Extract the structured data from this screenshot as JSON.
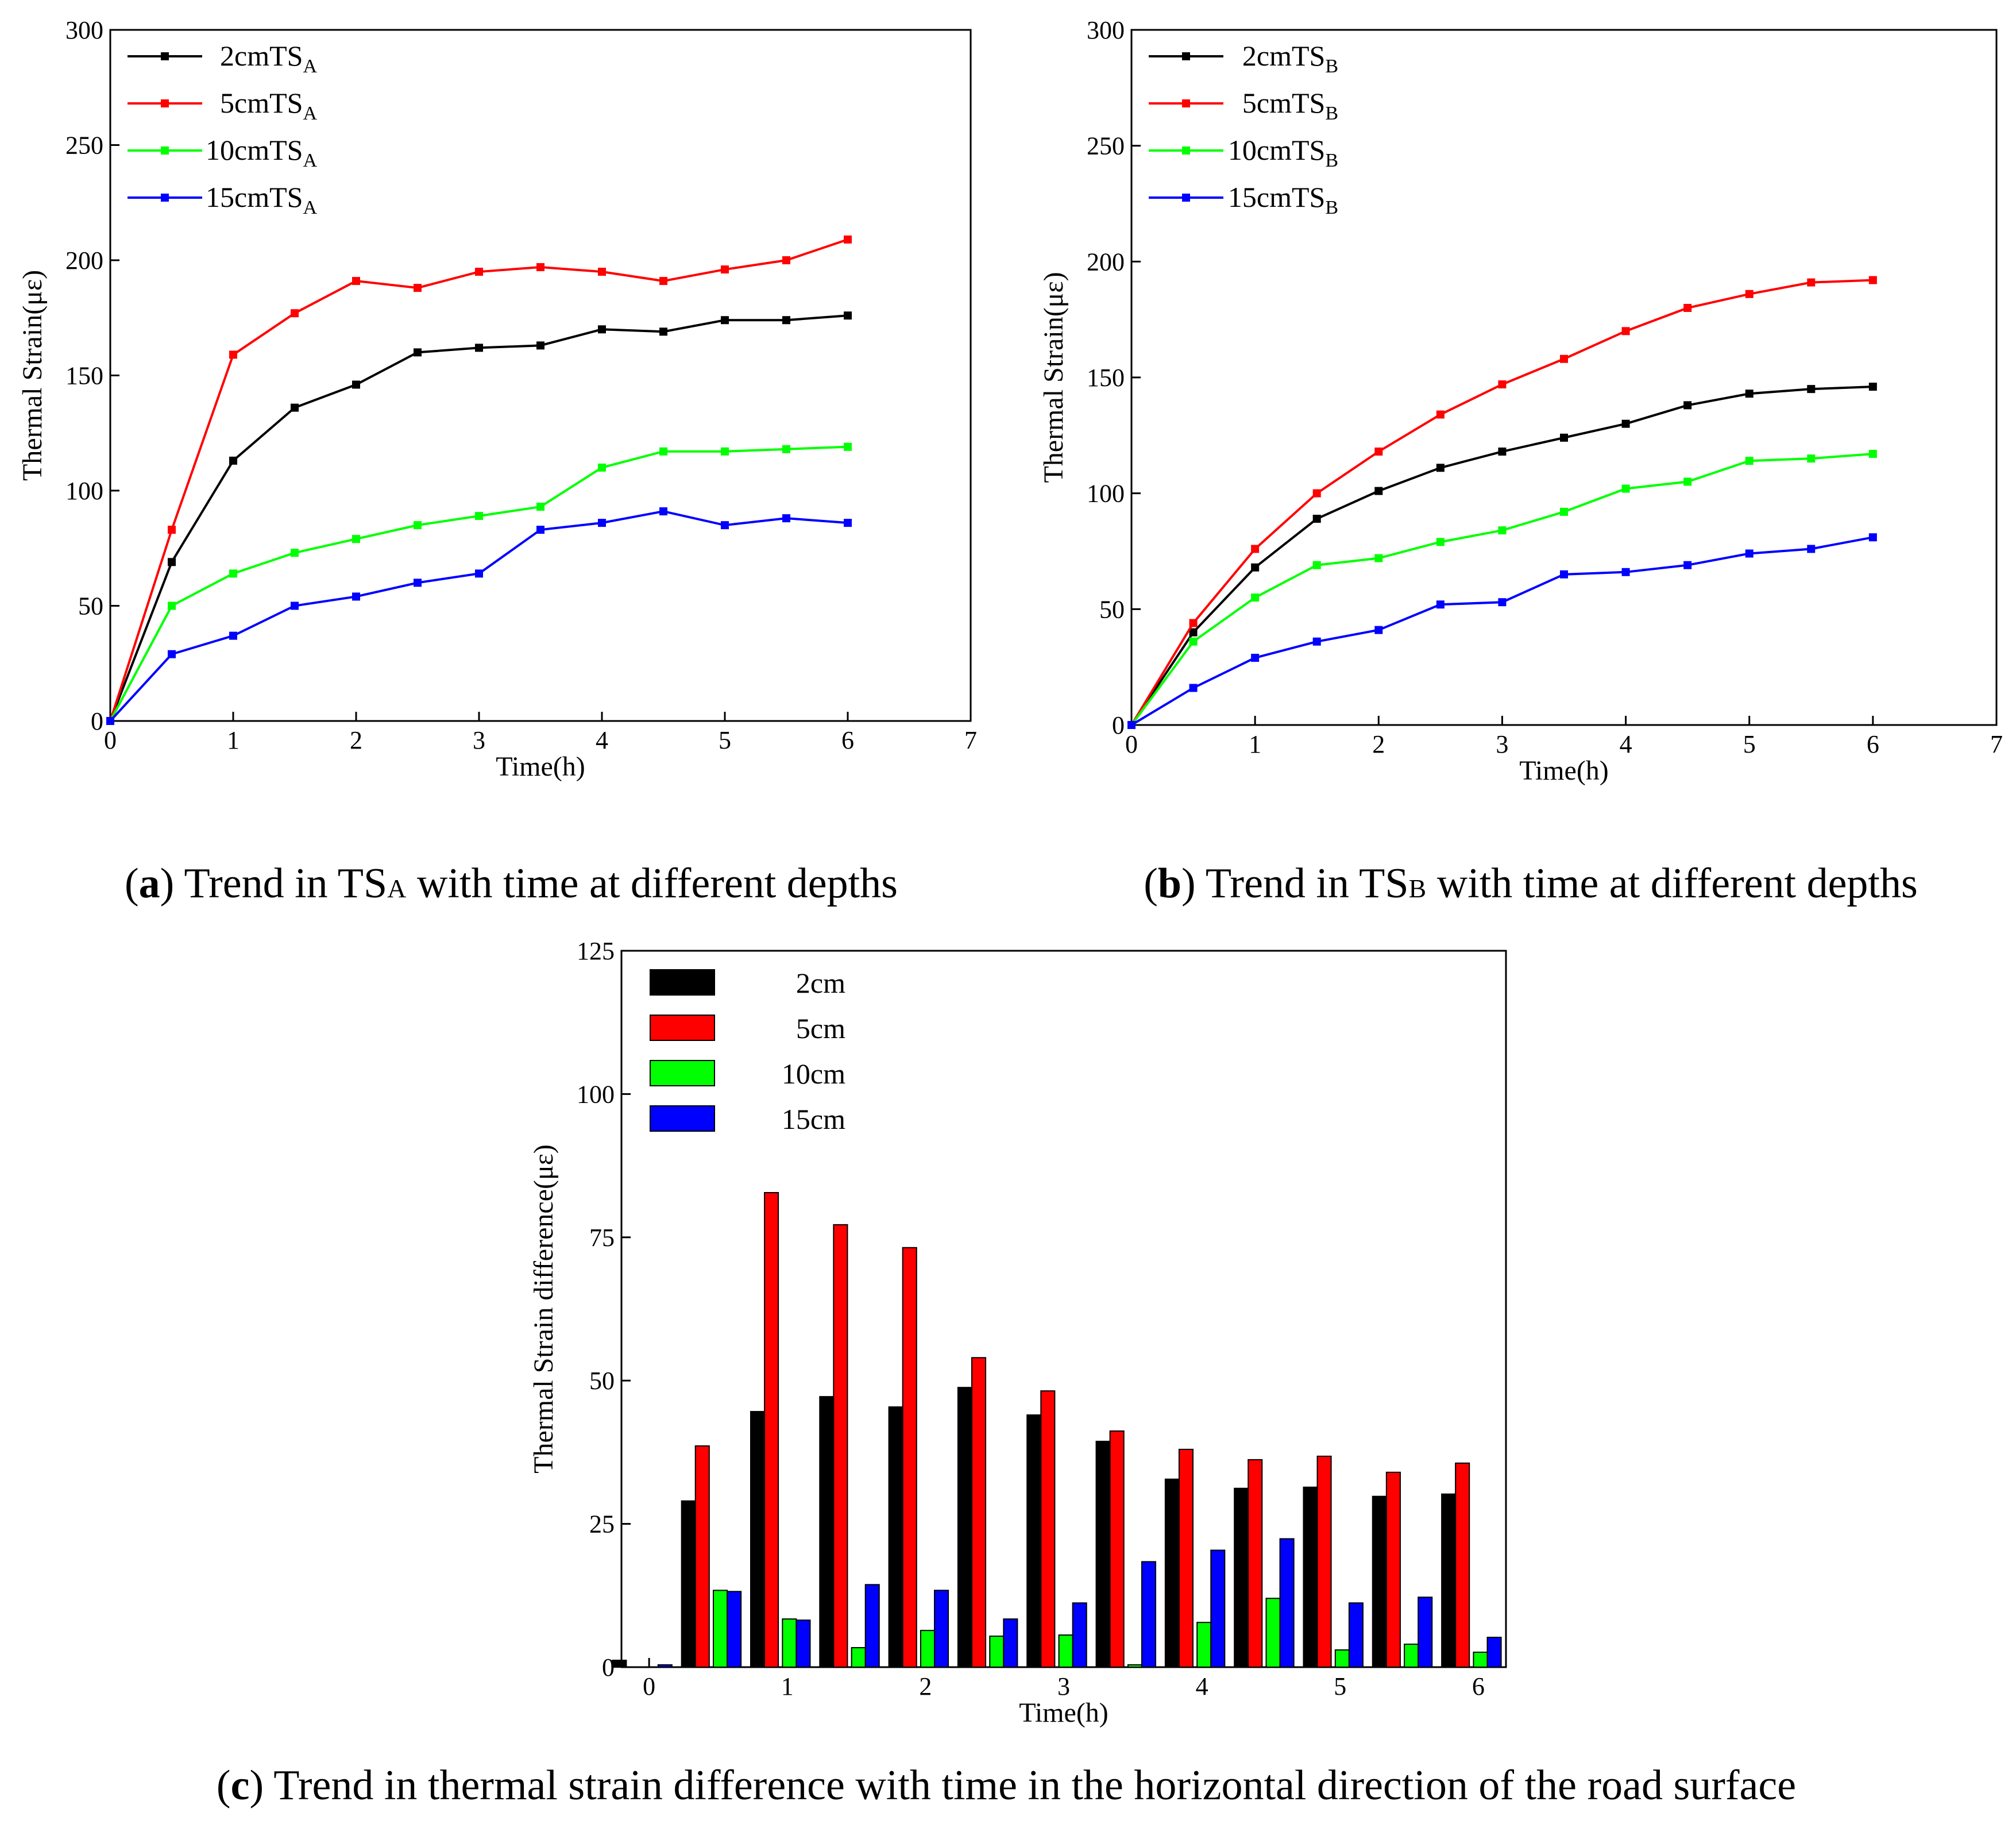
{
  "chart_data": [
    {
      "id": "a",
      "type": "line",
      "caption_letter": "a",
      "caption_text": " Trend in TS",
      "caption_sub": "A",
      "caption_tail": " with time at different depths",
      "xlabel": "Time(h)",
      "ylabel": "Thermal Strain(με)",
      "xlim": [
        0,
        7
      ],
      "ylim": [
        0,
        300
      ],
      "xticks": [
        0,
        1,
        2,
        3,
        4,
        5,
        6,
        7
      ],
      "yticks": [
        0,
        50,
        100,
        150,
        200,
        250,
        300
      ],
      "legend_position": "top-left",
      "x": [
        0,
        0.5,
        1,
        1.5,
        2,
        2.5,
        3,
        3.5,
        4,
        4.5,
        5,
        5.5,
        6
      ],
      "series": [
        {
          "name": "2cmTS",
          "sub": "A",
          "color": "#000000",
          "values": [
            0,
            69,
            113,
            136,
            146,
            160,
            162,
            163,
            170,
            169,
            174,
            174,
            176
          ]
        },
        {
          "name": "5cmTS",
          "sub": "A",
          "color": "#ff0000",
          "values": [
            0,
            83,
            159,
            177,
            191,
            188,
            195,
            197,
            195,
            191,
            196,
            200,
            209
          ]
        },
        {
          "name": "10cmTS",
          "sub": "A",
          "color": "#00ff00",
          "values": [
            0,
            50,
            64,
            73,
            79,
            85,
            89,
            93,
            110,
            117,
            117,
            118,
            119
          ]
        },
        {
          "name": "15cmTS",
          "sub": "A",
          "color": "#0000ff",
          "values": [
            0,
            29,
            37,
            50,
            54,
            60,
            64,
            83,
            86,
            91,
            85,
            88,
            86
          ]
        }
      ]
    },
    {
      "id": "b",
      "type": "line",
      "caption_letter": "b",
      "caption_text": " Trend in TS",
      "caption_sub": "B",
      "caption_tail": " with time at different depths",
      "xlabel": "Time(h)",
      "ylabel": "Thermal Strain(με)",
      "xlim": [
        0,
        7
      ],
      "ylim": [
        0,
        300
      ],
      "xticks": [
        0,
        1,
        2,
        3,
        4,
        5,
        6,
        7
      ],
      "yticks": [
        0,
        50,
        100,
        150,
        200,
        250,
        300
      ],
      "legend_position": "top-left",
      "x": [
        0,
        0.5,
        1,
        1.5,
        2,
        2.5,
        3,
        3.5,
        4,
        4.5,
        5,
        5.5,
        6
      ],
      "series": [
        {
          "name": "2cmTS",
          "sub": "B",
          "color": "#000000",
          "values": [
            0,
            40,
            68,
            89,
            101,
            111,
            118,
            124,
            130,
            138,
            143,
            145,
            146
          ]
        },
        {
          "name": "5cmTS",
          "sub": "B",
          "color": "#ff0000",
          "values": [
            0,
            44,
            76,
            100,
            118,
            134,
            147,
            158,
            170,
            180,
            186,
            191,
            192
          ]
        },
        {
          "name": "10cmTS",
          "sub": "B",
          "color": "#00ff00",
          "values": [
            0,
            36,
            55,
            69,
            72,
            79,
            84,
            92,
            102,
            105,
            114,
            115,
            117
          ]
        },
        {
          "name": "15cmTS",
          "sub": "B",
          "color": "#0000ff",
          "values": [
            0,
            16,
            29,
            36,
            41,
            52,
            53,
            65,
            66,
            69,
            74,
            76,
            81
          ]
        }
      ]
    },
    {
      "id": "c",
      "type": "bar",
      "caption_letter": "c",
      "caption_text": " Trend in thermal strain difference with time in the horizontal direction of the road surface",
      "xlabel": "Time(h)",
      "ylabel": "Thermal Strain difference(με)",
      "xlim": [
        -0.2,
        6.2
      ],
      "ylim": [
        0,
        125
      ],
      "xticks": [
        0,
        1,
        2,
        3,
        4,
        5,
        6
      ],
      "yticks": [
        0,
        25,
        50,
        75,
        100,
        125
      ],
      "legend_position": "top-left",
      "x": [
        0,
        0.5,
        1,
        1.5,
        2,
        2.5,
        3,
        3.5,
        4,
        4.5,
        5,
        5.5,
        6
      ],
      "series": [
        {
          "name": "2cm",
          "color": "#000000",
          "values": [
            1.2,
            29,
            44.6,
            47.2,
            45.4,
            48.8,
            44,
            39.4,
            32.8,
            31.2,
            31.4,
            29.8,
            30.2
          ]
        },
        {
          "name": "5cm",
          "color": "#ff0000",
          "values": [
            0,
            38.6,
            82.8,
            77.2,
            73.2,
            54,
            48.2,
            41.2,
            38,
            36.2,
            36.8,
            34,
            35.6
          ]
        },
        {
          "name": "10cm",
          "color": "#00ff00",
          "values": [
            0,
            13.4,
            8.4,
            3.4,
            6.4,
            5.4,
            5.6,
            0.4,
            7.8,
            12,
            3,
            4,
            2.6
          ]
        },
        {
          "name": "15cm",
          "color": "#0000ff",
          "values": [
            0.4,
            13.2,
            8.2,
            14.4,
            13.4,
            8.4,
            11.2,
            18.4,
            20.4,
            22.4,
            11.2,
            12.2,
            5.2
          ]
        }
      ]
    }
  ]
}
